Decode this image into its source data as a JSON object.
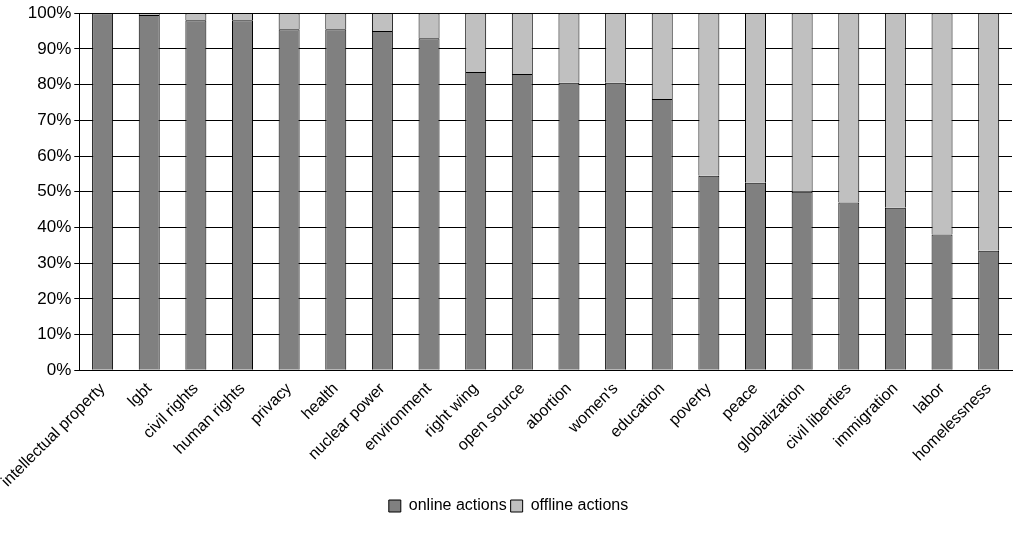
{
  "chart_data": {
    "type": "bar",
    "stacked": true,
    "categories": [
      "intellectual property",
      "lgbt",
      "civil rights",
      "human rights",
      "privacy",
      "health",
      "nuclear power",
      "environment",
      "right wing",
      "open source",
      "abortion",
      "women's",
      "education",
      "poverty",
      "peace",
      "globalization",
      "civil liberties",
      "immigration",
      "labor",
      "homelessness"
    ],
    "series": [
      {
        "name": "online actions",
        "color": "#808080",
        "values": [
          100,
          99.5,
          98,
          98,
          95.5,
          95.5,
          95,
          93,
          83.5,
          83,
          80.5,
          80.5,
          76,
          54.5,
          52.5,
          50,
          47,
          45.5,
          38,
          33.5
        ]
      },
      {
        "name": "offline actions",
        "color": "#c0c0c0",
        "values": [
          0,
          0.5,
          2,
          2,
          4.5,
          4.5,
          5,
          7,
          16.5,
          17,
          19.5,
          19.5,
          24,
          45.5,
          47.5,
          50,
          53,
          54.5,
          62,
          66.5
        ]
      }
    ],
    "ylim": [
      0,
      100
    ],
    "yticks": [
      {
        "value": 0,
        "label": "0%"
      },
      {
        "value": 10,
        "label": "10%"
      },
      {
        "value": 20,
        "label": "20%"
      },
      {
        "value": 30,
        "label": "30%"
      },
      {
        "value": 40,
        "label": "40%"
      },
      {
        "value": 50,
        "label": "50%"
      },
      {
        "value": 60,
        "label": "60%"
      },
      {
        "value": 70,
        "label": "70%"
      },
      {
        "value": 80,
        "label": "80%"
      },
      {
        "value": 90,
        "label": "90%"
      },
      {
        "value": 100,
        "label": "100%"
      }
    ],
    "grid": "y",
    "legend": "bottom"
  }
}
